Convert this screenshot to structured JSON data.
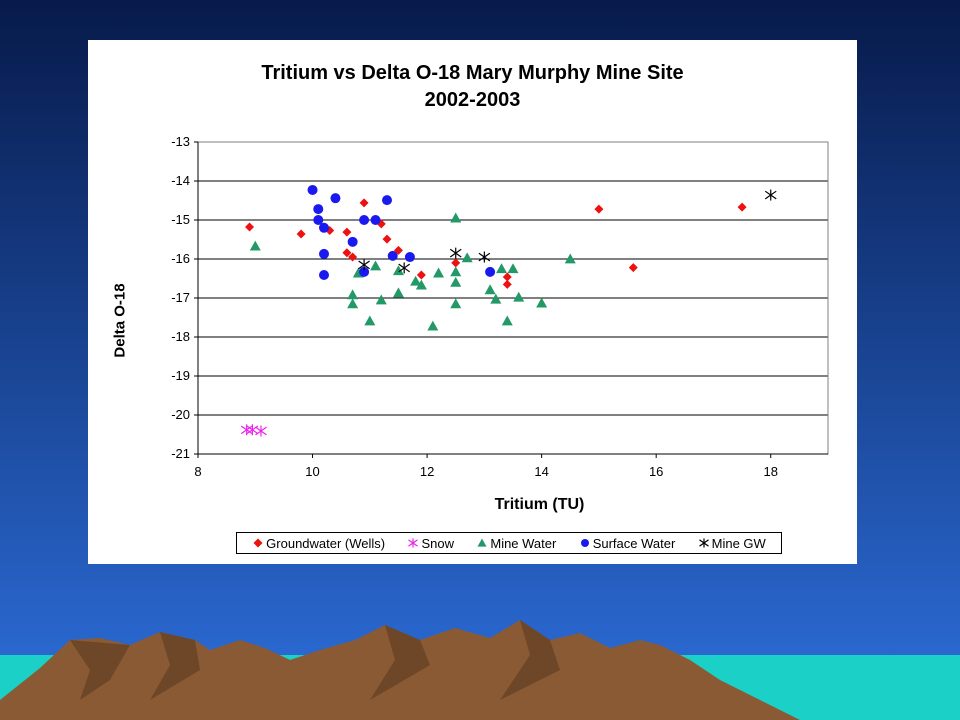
{
  "slide": {
    "sky_top": "#071a4a",
    "sky_bottom": "#2d6fdc",
    "mountain_color": "#8a5a34",
    "ground_color": "#1bd0c6"
  },
  "chart_data": {
    "type": "scatter",
    "title": "Tritium vs Delta O-18 Mary Murphy Mine Site",
    "subtitle": "2002-2003",
    "xlabel": "Tritium (TU)",
    "ylabel": "Delta O-18",
    "xlim": [
      8,
      19
    ],
    "ylim": [
      -21,
      -13
    ],
    "xticks": [
      "8",
      "10",
      "12",
      "14",
      "16",
      "18"
    ],
    "yticks": [
      "-13",
      "-14",
      "-15",
      "-16",
      "-17",
      "-18",
      "-19",
      "-20",
      "-21"
    ],
    "grid": "horizontal",
    "legend_position": "bottom",
    "series": [
      {
        "name": "Groundwater (Wells)",
        "color": "#ee1111",
        "marker": "diamond",
        "points": [
          [
            8.9,
            -15.18
          ],
          [
            9.8,
            -15.36
          ],
          [
            10.3,
            -15.27
          ],
          [
            10.6,
            -15.31
          ],
          [
            10.6,
            -15.84
          ],
          [
            10.7,
            -15.95
          ],
          [
            10.9,
            -14.56
          ],
          [
            11.2,
            -15.1
          ],
          [
            11.3,
            -15.49
          ],
          [
            11.5,
            -15.78
          ],
          [
            11.9,
            -16.41
          ],
          [
            12.5,
            -16.1
          ],
          [
            13.4,
            -16.46
          ],
          [
            13.4,
            -16.65
          ],
          [
            15.0,
            -14.72
          ],
          [
            15.6,
            -16.22
          ],
          [
            17.5,
            -14.67
          ]
        ]
      },
      {
        "name": "Snow",
        "color": "#ee22ee",
        "marker": "star",
        "points": [
          [
            8.85,
            -20.38
          ],
          [
            8.95,
            -20.38
          ],
          [
            9.1,
            -20.41
          ]
        ]
      },
      {
        "name": "Mine Water",
        "color": "#229966",
        "marker": "triangle",
        "points": [
          [
            9.0,
            -15.67
          ],
          [
            10.7,
            -16.92
          ],
          [
            10.7,
            -17.15
          ],
          [
            10.8,
            -16.36
          ],
          [
            11.0,
            -17.59
          ],
          [
            11.1,
            -16.18
          ],
          [
            11.2,
            -17.05
          ],
          [
            11.5,
            -16.3
          ],
          [
            11.5,
            -16.87
          ],
          [
            11.8,
            -16.57
          ],
          [
            11.9,
            -16.67
          ],
          [
            12.1,
            -17.72
          ],
          [
            12.2,
            -16.36
          ],
          [
            12.5,
            -14.95
          ],
          [
            12.5,
            -16.33
          ],
          [
            12.5,
            -16.6
          ],
          [
            12.5,
            -17.15
          ],
          [
            12.7,
            -15.97
          ],
          [
            13.1,
            -16.79
          ],
          [
            13.2,
            -17.03
          ],
          [
            13.3,
            -16.25
          ],
          [
            13.4,
            -17.59
          ],
          [
            13.5,
            -16.25
          ],
          [
            13.6,
            -16.98
          ],
          [
            14.0,
            -17.13
          ],
          [
            14.5,
            -16.0
          ]
        ]
      },
      {
        "name": "Surface Water",
        "color": "#1a1aee",
        "marker": "circle",
        "points": [
          [
            10.0,
            -14.23
          ],
          [
            10.1,
            -14.72
          ],
          [
            10.1,
            -15.0
          ],
          [
            10.2,
            -15.2
          ],
          [
            10.2,
            -15.87
          ],
          [
            10.2,
            -16.41
          ],
          [
            10.4,
            -14.44
          ],
          [
            10.7,
            -15.56
          ],
          [
            10.9,
            -15.0
          ],
          [
            10.9,
            -16.33
          ],
          [
            11.1,
            -15.0
          ],
          [
            11.3,
            -14.49
          ],
          [
            11.4,
            -15.92
          ],
          [
            11.7,
            -15.95
          ],
          [
            13.1,
            -16.33
          ]
        ]
      },
      {
        "name": "Mine GW",
        "color": "#000000",
        "marker": "star",
        "points": [
          [
            10.9,
            -16.15
          ],
          [
            11.6,
            -16.23
          ],
          [
            12.5,
            -15.85
          ],
          [
            13.0,
            -15.95
          ],
          [
            18.0,
            -14.36
          ]
        ]
      }
    ]
  }
}
